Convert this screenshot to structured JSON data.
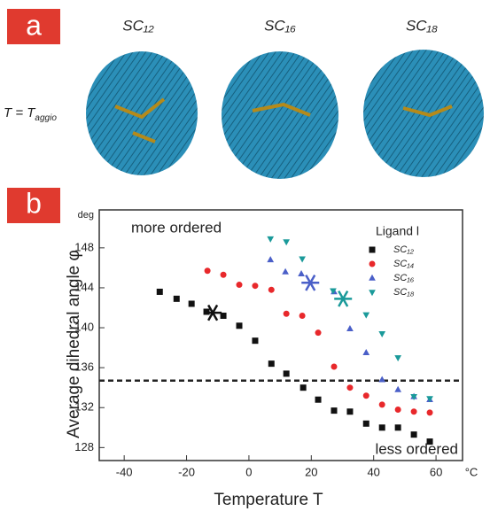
{
  "panel_a": {
    "label": "a",
    "structures": [
      "SC₁₂",
      "SC₁₆",
      "SC₁₈"
    ],
    "row_label": {
      "text": "T = T",
      "sub": "aggio"
    }
  },
  "chart_data": {
    "type": "scatter",
    "panel_label": "b",
    "annotations": [
      "more ordered",
      "less ordered"
    ],
    "y_label": "Average dihedral angle φ",
    "y_unit": "deg",
    "x_label": "Temperature T",
    "x_unit": "°C",
    "legend_title": "Ligand l",
    "legend_position": "upper right",
    "grid": false,
    "xlim": [
      -48,
      68.5
    ],
    "ylim": [
      126.7,
      151.8
    ],
    "xticks": [
      -40,
      -20,
      0,
      20,
      40,
      60
    ],
    "yticks": [
      128,
      132,
      136,
      140,
      144,
      148
    ],
    "reference_line": 134.7,
    "series": [
      {
        "name": "SC₁₂",
        "color": "#111111",
        "marker": "square",
        "x": [
          -28.6,
          -23.2,
          -18.4,
          -13.6,
          -8.2,
          -3.1,
          2.0,
          7.2,
          12.0,
          17.4,
          22.2,
          27.3,
          32.4,
          37.6,
          42.7,
          47.8,
          52.9,
          58.0
        ],
        "values": [
          143.6,
          142.9,
          142.4,
          141.6,
          141.2,
          140.2,
          138.7,
          136.4,
          135.4,
          134.0,
          132.8,
          131.7,
          131.6,
          130.4,
          130.0,
          130.0,
          129.3,
          128.6
        ],
        "aggregation": {
          "x": -11.6,
          "y": 141.5
        }
      },
      {
        "name": "SC₁₄",
        "color": "#e8282b",
        "marker": "circle",
        "x": [
          -13.3,
          -8.2,
          -3.1,
          2.0,
          7.2,
          12.0,
          17.1,
          22.2,
          27.3,
          32.4,
          37.6,
          42.7,
          47.8,
          52.9,
          58.0
        ],
        "values": [
          145.7,
          145.3,
          144.3,
          144.2,
          143.8,
          141.4,
          141.2,
          139.5,
          136.1,
          134.0,
          133.2,
          132.3,
          131.8,
          131.6,
          131.5
        ]
      },
      {
        "name": "SC₁₆",
        "color": "#4a5fc8",
        "marker": "triangle-up",
        "x": [
          6.9,
          11.7,
          16.8,
          27.3,
          32.4,
          37.6,
          42.7,
          47.8,
          52.9,
          58.0
        ],
        "values": [
          146.8,
          145.6,
          145.4,
          143.6,
          139.9,
          137.5,
          134.8,
          133.8,
          133.1,
          132.8
        ],
        "aggregation": {
          "x": 19.7,
          "y": 144.5
        }
      },
      {
        "name": "SC₁₈",
        "color": "#1a9a9a",
        "marker": "triangle-down",
        "x": [
          6.9,
          12.0,
          17.1,
          27.0,
          37.6,
          42.7,
          47.8,
          52.9,
          58.0
        ],
        "values": [
          148.9,
          148.6,
          146.9,
          143.7,
          141.3,
          139.4,
          137.0,
          133.1,
          132.9
        ],
        "aggregation": {
          "x": 30.2,
          "y": 142.9
        }
      }
    ]
  }
}
